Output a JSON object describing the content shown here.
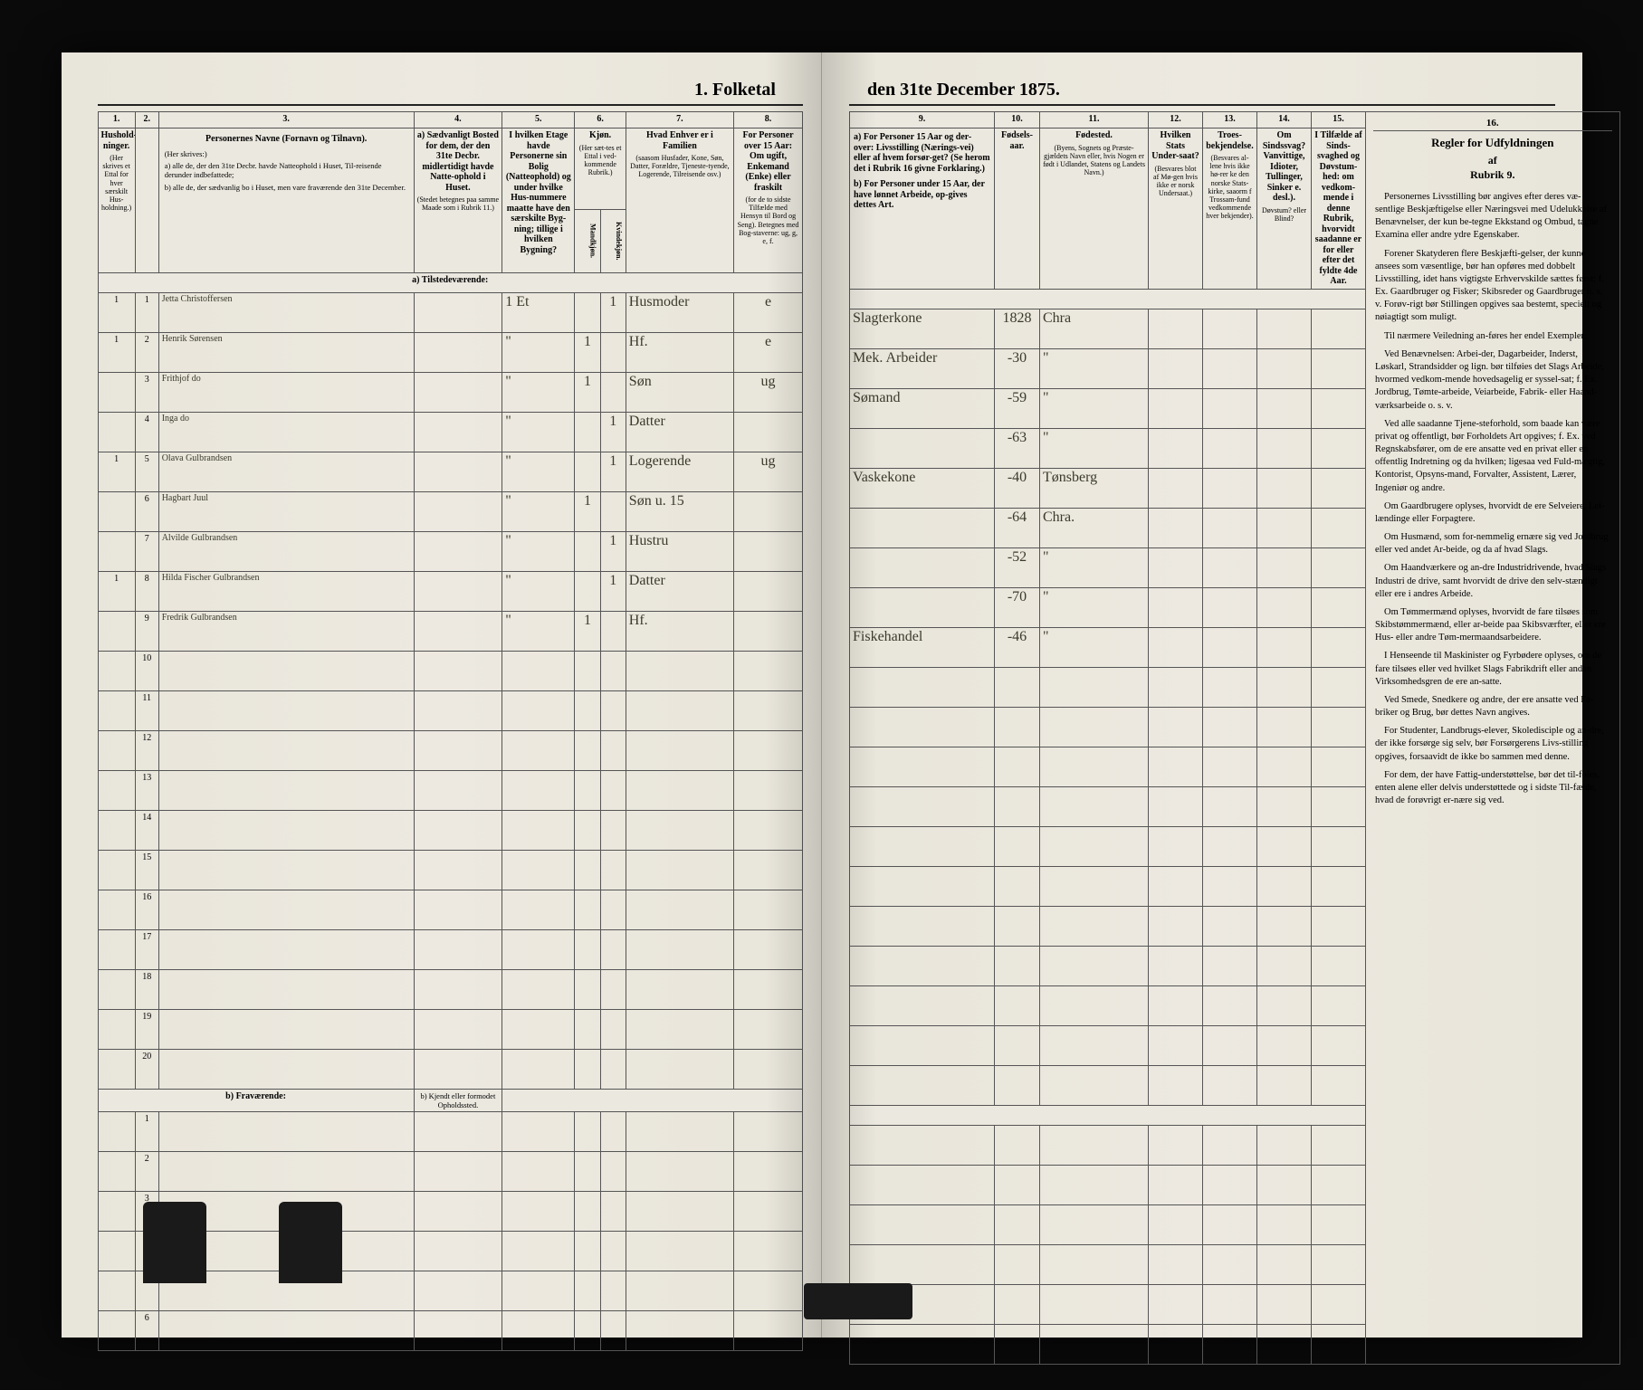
{
  "document": {
    "title_left": "1. Folketal",
    "title_right": "den 31te December 1875.",
    "background": "#ebe8df",
    "ink": "#3a3a2a",
    "rule": "#555555"
  },
  "columns_left": {
    "nums": [
      "1.",
      "2.",
      "3.",
      "4.",
      "5.",
      "6.",
      "7.",
      "8."
    ],
    "h1": "Hushold-ninger.",
    "h1_sub": "(Her skrives et Ettal for hver særskilt Hus-holdning.)",
    "h2": "",
    "h3": "Personernes Navne (Fornavn og Tilnavn).",
    "h3_sub_a": "a) alle de, der den 31te Decbr. havde Natteophold i Huset, Til-reisende derunder indbefattede;",
    "h3_sub_b": "b) alle de, der sædvanlig bo i Huset, men vare fraværende den 31te December.",
    "h4": "a) Sædvanligt Bosted for dem, der den 31te Decbr. midlertidigt havde Natte-ophold i Huset.",
    "h4_sub": "(Stedet betegnes paa samme Maade som i Rubrik 11.)",
    "h5": "I hvilken Etage havde Personerne sin Bolig (Natteophold) og under hvilke Hus-nummere maatte have den særskilte Byg-ning; tillige i hvilken Bygning?",
    "h6": "Kjøn.",
    "h6_sub": "(Her sæt-tes et Ettal i ved-kommende Rubrik.)",
    "h6a": "Mandkjøn.",
    "h6b": "Kvindekjøn.",
    "h7": "Hvad Enhver er i Familien",
    "h7_sub": "(saasom Husfader, Kone, Søn, Datter, Forældre, Tjeneste-tyende, Logerende, Tilreisende osv.)",
    "h8": "For Personer over 15 Aar: Om ugift, Enkemand (Enke) eller fraskilt",
    "h8_sub": "(for de to sidste Tilfælde med Hensyn til Bord og Seng). Betegnes med Bog-staverne: ug, g, e, f."
  },
  "columns_right": {
    "nums": [
      "9.",
      "10.",
      "11.",
      "12.",
      "13.",
      "14.",
      "15.",
      "16."
    ],
    "h9": "a) For Personer 15 Aar og der-over: Livsstilling (Nærings-vei) eller af hvem forsør-get? (Se herom det i Rubrik 16 givne Forklaring.)",
    "h9_b": "b) For Personer under 15 Aar, der have lønnet Arbeide, op-gives dettes Art.",
    "h10": "Fødsels-aar.",
    "h11": "Fødested.",
    "h11_sub": "(Byens, Sognets og Præste-gjældets Navn eller, hvis Nogen er født i Udlandet, Statens og Landets Navn.)",
    "h12": "Hvilken Stats Under-saat?",
    "h12_sub": "(Besvares blot af Mø-gen hvis ikke er norsk Undersaat.)",
    "h13": "Troes-bekjendelse.",
    "h13_sub": "(Besvares al-lene hvis ikke hø-rer ke den norske Stats-kirke, saaorm f Trossam-fund vedkommende hver bekjender).",
    "h14": "Om Sindssvag? Vanvittige, Idioter, Tullinger, Sinker e. desl.).",
    "h14_sub": "Døvstum? eller Blind?",
    "h15": "I Tilfælde af Sinds-svaghed og Døvstum-hed: om vedkom-mende i denne Rubrik, hvorvidt saadanne er for eller efter det fyldte 4de Aar.",
    "h16_head": "Regler for Udfyldningen",
    "h16_sub": "af",
    "h16_sub2": "Rubrik 9."
  },
  "sections": {
    "a": "a) Tilstedeværende:",
    "b": "b) Fraværende:",
    "b_col4": "b) Kjendt eller formodet Opholdssted."
  },
  "rows": [
    {
      "n": "1",
      "hh": "1",
      "name": "Jetta Christoffersen",
      "c4": "",
      "c5": "1 Et",
      "c6m": "",
      "c6k": "1",
      "c7": "Husmoder",
      "c8": "e",
      "c9": "Slagterkone",
      "c10": "1828",
      "c11": "Chra"
    },
    {
      "n": "2",
      "hh": "1",
      "name": "Henrik Sørensen",
      "c4": "",
      "c5": "\"",
      "c6m": "1",
      "c6k": "",
      "c7": "Hf.",
      "c8": "e",
      "c9": "Mek. Arbeider",
      "c10": "-30",
      "c11": "\""
    },
    {
      "n": "3",
      "hh": "",
      "name": "Frithjof do",
      "c4": "",
      "c5": "\"",
      "c6m": "1",
      "c6k": "",
      "c7": "Søn",
      "c8": "ug",
      "c9": "Sømand",
      "c10": "-59",
      "c11": "\""
    },
    {
      "n": "4",
      "hh": "",
      "name": "Inga do",
      "c4": "",
      "c5": "\"",
      "c6m": "",
      "c6k": "1",
      "c7": "Datter",
      "c8": "",
      "c9": "",
      "c10": "-63",
      "c11": "\""
    },
    {
      "n": "5",
      "hh": "1",
      "name": "Olava Gulbrandsen",
      "c4": "",
      "c5": "\"",
      "c6m": "",
      "c6k": "1",
      "c7": "Logerende",
      "c8": "ug",
      "c9": "Vaskekone",
      "c10": "-40",
      "c11": "Tønsberg"
    },
    {
      "n": "6",
      "hh": "",
      "name": "Hagbart Juul",
      "c4": "",
      "c5": "\"",
      "c6m": "1",
      "c6k": "",
      "c7": "Søn u. 15",
      "c8": "",
      "c9": "",
      "c10": "-64",
      "c11": "Chra."
    },
    {
      "n": "7",
      "hh": "",
      "name": "Alvilde Gulbrandsen",
      "c4": "",
      "c5": "\"",
      "c6m": "",
      "c6k": "1",
      "c7": "Hustru",
      "c8": "",
      "c9": "",
      "c10": "-52",
      "c11": "\""
    },
    {
      "n": "8",
      "hh": "1",
      "name": "Hilda Fischer Gulbrandsen",
      "c4": "",
      "c5": "\"",
      "c6m": "",
      "c6k": "1",
      "c7": "Datter",
      "c8": "",
      "c9": "",
      "c10": "-70",
      "c11": "\""
    },
    {
      "n": "9",
      "hh": "",
      "name": "Fredrik Gulbrandsen",
      "c4": "",
      "c5": "\"",
      "c6m": "1",
      "c6k": "",
      "c7": "Hf.",
      "c8": "",
      "c9": "Fiskehandel",
      "c10": "-46",
      "c11": "\""
    }
  ],
  "empty_rows_a": [
    "10",
    "11",
    "12",
    "13",
    "14",
    "15",
    "16",
    "17",
    "18",
    "19",
    "20"
  ],
  "empty_rows_b": [
    "1",
    "2",
    "3",
    "4",
    "5",
    "6"
  ],
  "instructions": {
    "p1": "Personernes Livsstilling bør angives efter deres væ-sentlige Beskjæftigelse eller Næringsvei med Udelukkelse af Benævnelser, der kun be-tegne Ekkstand og Ombud, tagne Examina eller andre ydre Egenskaber.",
    "p2": "Forener Skatyderen flere Beskjæfti-gelser, der kunne ansees som væsentlige, bør han opføres med dobbelt Livsstilling, idet hans vigtigste Erhvervskilde sættes først; f. Ex. Gaardbruger og Fisker; Skibsreder og Gaardbruger o. s. v. Forøv-rigt bør Stillingen opgives saa bestemt, specielt og nøiagtigt som muligt.",
    "p3": "Til nærmere Veiledning an-føres her endel Exempler:",
    "p4": "Ved Benævnelsen: Arbei-der, Dagarbeider, Inderst, Løskarl, Strandsidder og lign. bør tilføies det Slags Arbeide, hvormed vedkom-mende hovedsagelig er syssel-sat; f. Ex. Jordbrug, Tømte-arbeide, Veiarbeide, Fabrik- eller Haand-værksarbeide o. s. v.",
    "p5": "Ved alle saadanne Tjene-steforhold, som baade kan være privat og offentligt, bør Forholdets Art opgives; f. Ex. ved Regnskabsfører, om de ere ansatte ved en privat eller en offentlig Indretning og da hvilken; ligesaa ved Fuld-mægtig, Kontorist, Opsyns-mand, Forvalter, Assistent, Lærer, Ingeniør og andre.",
    "p6": "Om Gaardbrugere oplyses, hvorvidt de ere Selveiere, Lei-lændinge eller Forpagtere.",
    "p7": "Om Husmænd, som for-nemmelig ernære sig ved Jordbrug eller ved andet Ar-beide, og da af hvad Slags.",
    "p8": "Om Haandværkere og an-dre Industridrivende, hvad Slags Industri de drive, samt hvorvidt de drive den selv-stændigt eller ere i andres Arbeide.",
    "p9": "Om Tømmermænd oplyses, hvorvidt de fare tilsøes som Skibstømmermænd, eller ar-beide paa Skibsværfter, eller ere Hus- eller andre Tøm-mermaandsarbeidere.",
    "p10": "I Henseende til Maskinister og Fyrbødere oplyses, om de fare tilsøes eller ved hvilket Slags Fabrikdrift eller anden Virksomhedsgren de ere an-satte.",
    "p11": "Ved Smede, Snedkere og andre, der ere ansatte ved Fa-briker og Brug, bør dettes Navn angives.",
    "p12": "For Studenter, Landbrugs-elever, Skoledisciple og an-dre, der ikke forsørge sig selv, bør Forsørgerens Livs-stilling opgives, forsaavidt de ikke bo sammen med denne.",
    "p13": "For dem, der have Fattig-understøttelse, bør det til-føies, enten alene eller delvis understøttede og i sidste Til-fælde, hvad de forøvrigt er-nære sig ved."
  }
}
